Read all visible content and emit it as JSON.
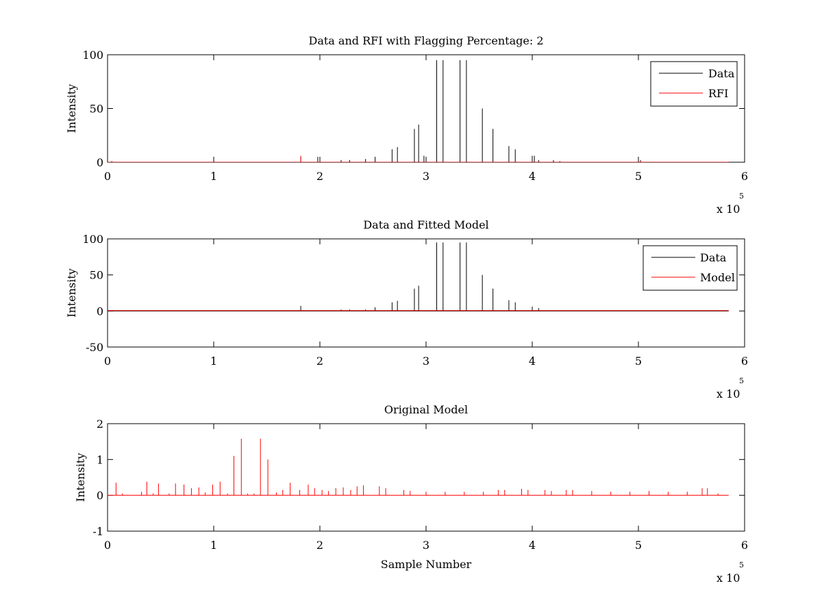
{
  "chart_data": [
    {
      "type": "line",
      "title": "Data and RFI with Flagging Percentage: 2",
      "xlabel": "",
      "ylabel": "Intensity",
      "xlim": [
        0,
        600000
      ],
      "ylim": [
        0,
        100
      ],
      "xticks": [
        0,
        1,
        2,
        3,
        4,
        5,
        6
      ],
      "yticks": [
        0,
        50,
        100
      ],
      "x_multiplier": "x 10",
      "x_multiplier_exponent": "5",
      "grid": false,
      "legend": {
        "position": "top-right",
        "entries": [
          "Data",
          "RFI"
        ]
      },
      "series": [
        {
          "name": "Data",
          "color": "#000000",
          "x": [
            4000,
            182000,
            198000,
            220000,
            228000,
            243000,
            252000,
            268000,
            273000,
            289000,
            293000,
            298000,
            310000,
            316000,
            332000,
            338000,
            353000,
            363000,
            378000,
            384000,
            400000,
            402000,
            406000,
            420000,
            426000,
            502000
          ],
          "values": [
            1,
            5,
            5,
            2,
            2,
            3,
            5,
            12,
            14,
            31,
            35,
            6,
            95,
            95,
            95,
            95,
            50,
            31,
            15,
            12,
            6,
            6,
            2,
            2,
            1,
            2
          ]
        },
        {
          "name": "RFI",
          "color": "#ff0000",
          "x": [
            182000,
            198000,
            502000
          ],
          "values": [
            6,
            1,
            1
          ]
        }
      ]
    },
    {
      "type": "line",
      "title": "Data and Fitted Model",
      "xlabel": "",
      "ylabel": "Intensity",
      "xlim": [
        0,
        600000
      ],
      "ylim": [
        -50,
        100
      ],
      "xticks": [
        0,
        1,
        2,
        3,
        4,
        5,
        6
      ],
      "yticks": [
        -50,
        0,
        50,
        100
      ],
      "x_multiplier": "x 10",
      "x_multiplier_exponent": "5",
      "grid": false,
      "legend": {
        "position": "top-right",
        "entries": [
          "Data",
          "Model"
        ]
      },
      "series": [
        {
          "name": "Data",
          "color": "#000000",
          "x": [
            182000,
            220000,
            228000,
            243000,
            252000,
            268000,
            273000,
            289000,
            293000,
            310000,
            316000,
            332000,
            338000,
            353000,
            363000,
            378000,
            384000,
            400000,
            406000
          ],
          "values": [
            7,
            2,
            2,
            2,
            5,
            12,
            14,
            31,
            35,
            95,
            95,
            95,
            95,
            50,
            31,
            15,
            12,
            6,
            4
          ]
        },
        {
          "name": "Model",
          "color": "#ff0000",
          "x": [
            0,
            585000
          ],
          "values": [
            0.5,
            0.5
          ]
        }
      ]
    },
    {
      "type": "line",
      "title": "Original Model",
      "xlabel": "Sample Number",
      "ylabel": "Intensity",
      "xlim": [
        0,
        600000
      ],
      "ylim": [
        -1,
        2
      ],
      "xticks": [
        0,
        1,
        2,
        3,
        4,
        5,
        6
      ],
      "yticks": [
        -1,
        0,
        1,
        2
      ],
      "x_multiplier": "x 10",
      "x_multiplier_exponent": "5",
      "grid": false,
      "series": [
        {
          "name": "",
          "color": "#ff0000",
          "x": [
            8000,
            14000,
            32000,
            37000,
            43000,
            48000,
            58000,
            64000,
            72000,
            79000,
            86000,
            92000,
            99000,
            106000,
            113000,
            119000,
            126000,
            132000,
            138000,
            144000,
            151000,
            159000,
            165000,
            172000,
            181000,
            189000,
            195000,
            202000,
            208000,
            215000,
            222000,
            229000,
            235000,
            241000,
            256000,
            262000,
            279000,
            285000,
            300000,
            318000,
            336000,
            354000,
            368000,
            374000,
            390000,
            396000,
            412000,
            418000,
            432000,
            438000,
            456000,
            474000,
            492000,
            510000,
            528000,
            546000,
            560000,
            565000,
            575000
          ],
          "values": [
            0.35,
            0.05,
            0.1,
            0.38,
            0.05,
            0.33,
            0.05,
            0.33,
            0.3,
            0.2,
            0.22,
            0.08,
            0.3,
            0.38,
            0.05,
            1.1,
            1.58,
            0.05,
            0.05,
            1.58,
            1.0,
            0.08,
            0.15,
            0.35,
            0.15,
            0.3,
            0.2,
            0.15,
            0.12,
            0.2,
            0.22,
            0.15,
            0.25,
            0.28,
            0.25,
            0.2,
            0.15,
            0.12,
            0.1,
            0.1,
            0.1,
            0.1,
            0.15,
            0.15,
            0.18,
            0.15,
            0.15,
            0.12,
            0.15,
            0.15,
            0.12,
            0.1,
            0.1,
            0.12,
            0.1,
            0.1,
            0.2,
            0.2,
            0.05
          ]
        }
      ]
    }
  ]
}
